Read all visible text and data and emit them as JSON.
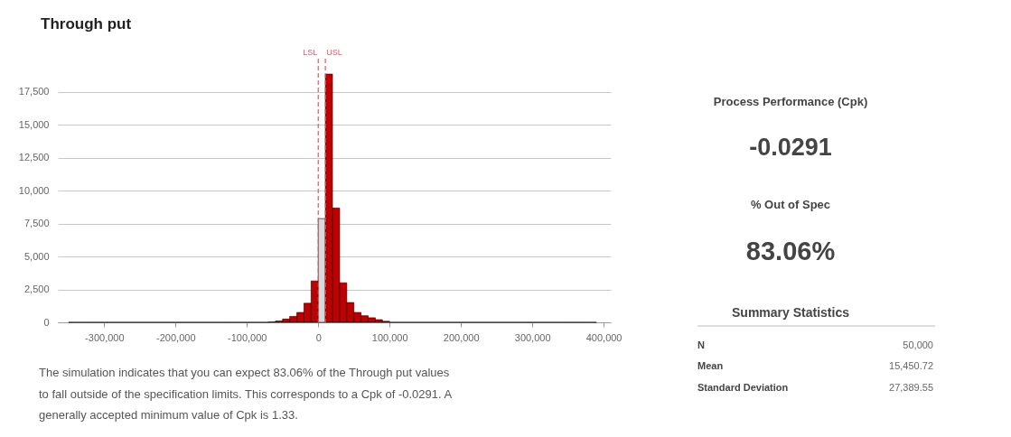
{
  "chart_data": {
    "type": "histogram",
    "title": "Through put",
    "bins": [
      -350000,
      -340000,
      -330000,
      -320000,
      -310000,
      -300000,
      -290000,
      -280000,
      -270000,
      -260000,
      -250000,
      -240000,
      -230000,
      -220000,
      -210000,
      -200000,
      -190000,
      -180000,
      -170000,
      -160000,
      -150000,
      -140000,
      -130000,
      -120000,
      -110000,
      -100000,
      -90000,
      -80000,
      -70000,
      -60000,
      -50000,
      -40000,
      -30000,
      -20000,
      -10000,
      0,
      10000,
      20000,
      30000,
      40000,
      50000,
      60000,
      70000,
      80000,
      90000,
      100000,
      110000,
      120000,
      130000,
      140000,
      150000,
      160000,
      170000,
      180000,
      190000,
      200000,
      210000,
      220000,
      230000,
      240000,
      250000,
      260000,
      270000,
      280000,
      290000,
      300000,
      310000,
      320000,
      330000,
      340000,
      350000,
      360000,
      370000,
      380000,
      390000
    ],
    "values": [
      0,
      0,
      0,
      0,
      0,
      0,
      0,
      0,
      0,
      0,
      0,
      0,
      0,
      0,
      0,
      0,
      0,
      0,
      0,
      0,
      0,
      0,
      0,
      0,
      0,
      0,
      0,
      0,
      30,
      100,
      250,
      450,
      750,
      1450,
      3140,
      7870,
      18830,
      8670,
      3000,
      1500,
      750,
      500,
      350,
      200,
      80,
      0,
      0,
      0,
      0,
      0,
      0,
      0,
      0,
      0,
      0,
      0,
      0,
      0,
      0,
      0,
      0,
      0,
      0,
      0,
      0,
      0,
      0,
      0,
      0,
      0,
      0,
      0,
      0,
      0
    ],
    "colors": [
      "#000000",
      "#000000",
      "#000000",
      "#000000",
      "#000000",
      "#000000",
      "#000000",
      "#000000",
      "#000000",
      "#000000",
      "#000000",
      "#000000",
      "#000000",
      "#000000",
      "#000000",
      "#000000",
      "#000000",
      "#000000",
      "#000000",
      "#000000",
      "#000000",
      "#000000",
      "#000000",
      "#000000",
      "#000000",
      "#000000",
      "#000000",
      "#000000",
      "#c00000",
      "#c00000",
      "#c00000",
      "#c00000",
      "#c00000",
      "#c00000",
      "#c00000",
      "#d9d9d9",
      "#c00000",
      "#c00000",
      "#c00000",
      "#c00000",
      "#c00000",
      "#c00000",
      "#c00000",
      "#c00000",
      "#c00000",
      "#000000",
      "#000000",
      "#000000",
      "#000000",
      "#000000",
      "#000000",
      "#000000",
      "#000000",
      "#000000",
      "#000000",
      "#000000",
      "#000000",
      "#000000",
      "#000000",
      "#000000",
      "#000000",
      "#000000",
      "#000000",
      "#000000",
      "#000000",
      "#000000",
      "#000000",
      "#000000",
      "#000000",
      "#000000",
      "#000000",
      "#000000",
      "#000000",
      "#000000"
    ],
    "xlim": [
      -365000,
      410000
    ],
    "xticks": [
      {
        "value": -300000,
        "label": "-300,000"
      },
      {
        "value": -200000,
        "label": "-200,000"
      },
      {
        "value": -100000,
        "label": "-100,000"
      },
      0,
      {
        "value": 100000,
        "label": "100,000"
      },
      {
        "value": 200000,
        "label": "200,000"
      },
      {
        "value": 300000,
        "label": "300,000"
      },
      {
        "value": 400000,
        "label": "400,000"
      }
    ],
    "ylim": [
      0,
      20000
    ],
    "yticks": [
      0,
      {
        "value": 2500,
        "label": "2,500"
      },
      {
        "value": 5000,
        "label": "5,000"
      },
      {
        "value": 7500,
        "label": "7,500"
      },
      {
        "value": 10000,
        "label": "10,000"
      },
      {
        "value": 12500,
        "label": "12,500"
      },
      {
        "value": 15000,
        "label": "15,000"
      },
      {
        "value": 17500,
        "label": "17,500"
      }
    ],
    "grid": "y",
    "ref_lines": [
      {
        "axis": "x",
        "value": 0,
        "label": "LSL",
        "color": "#e05a6a",
        "line_style": "dashed"
      },
      {
        "axis": "x",
        "value": 10000,
        "label": "USL",
        "color": "#e05a6a",
        "line_style": "dashed"
      }
    ],
    "annotations": [
      "Process Performance (Cpk)",
      "-0.0291",
      "% Out of Spec",
      "83.06%",
      "Summary Statistics",
      "N",
      "50,000",
      "Mean",
      "15,450.72",
      "Standard Deviation",
      "27,389.55",
      "The simulation indicates that you can expect 83.06% of the Through put values",
      "to fall outside of the specification limits. This corresponds to a Cpk of -0.0291. A",
      "generally accepted minimum value of Cpk is 1.33."
    ]
  }
}
